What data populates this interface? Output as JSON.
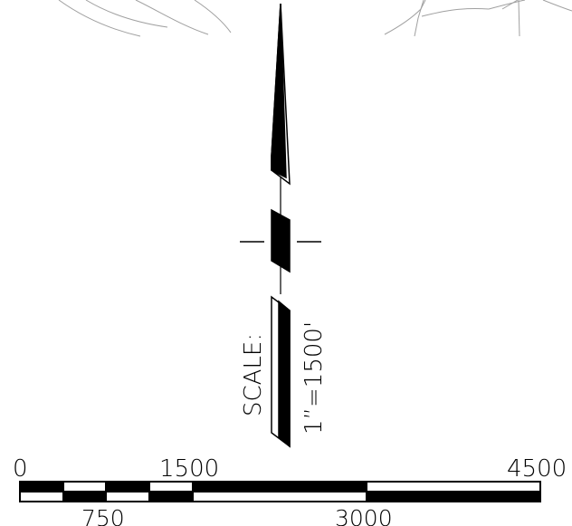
{
  "north_arrow": {
    "scale_label": "SCALE:",
    "scale_ratio": "1”=1500'"
  },
  "scale_bar": {
    "ticks_top": [
      "0",
      "1500",
      "4500"
    ],
    "ticks_bottom": [
      "750",
      "3000"
    ]
  },
  "colors": {
    "ink": "#000000",
    "paper": "#ffffff",
    "terrain": "#a0a0a0"
  }
}
